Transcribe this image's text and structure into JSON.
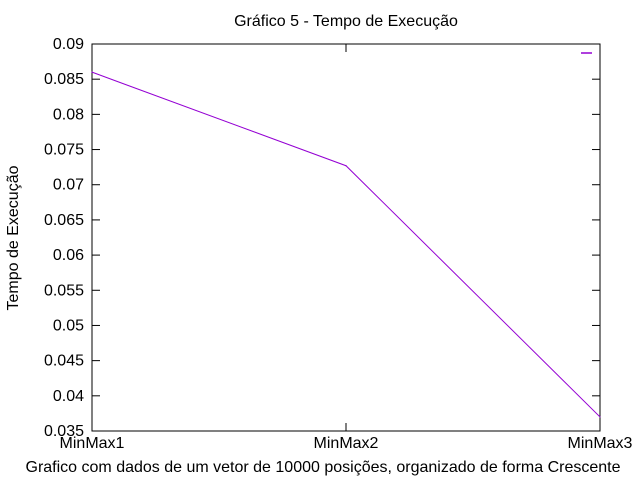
{
  "chart_data": {
    "type": "line",
    "title": "Gráfico 5 - Tempo de Execução",
    "xlabel": "Grafico com dados de um vetor de 10000 posições, organizado de forma Crescente",
    "ylabel": "Tempo de Execução",
    "categories": [
      "MinMax1",
      "MinMax2",
      "MinMax3"
    ],
    "series": [
      {
        "values": [
          0.086,
          0.0727,
          0.037
        ],
        "color": "#9400d3"
      }
    ],
    "ylim": [
      0.035,
      0.09
    ],
    "yticks": [
      0.035,
      0.04,
      0.045,
      0.05,
      0.055,
      0.06,
      0.065,
      0.07,
      0.075,
      0.08,
      0.085,
      0.09
    ],
    "ytick_labels": [
      "0.035",
      "0.04",
      "0.045",
      "0.05",
      "0.055",
      "0.06",
      "0.065",
      "0.07",
      "0.075",
      "0.08",
      "0.085",
      "0.09"
    ],
    "grid": false,
    "legend": "top-right"
  }
}
